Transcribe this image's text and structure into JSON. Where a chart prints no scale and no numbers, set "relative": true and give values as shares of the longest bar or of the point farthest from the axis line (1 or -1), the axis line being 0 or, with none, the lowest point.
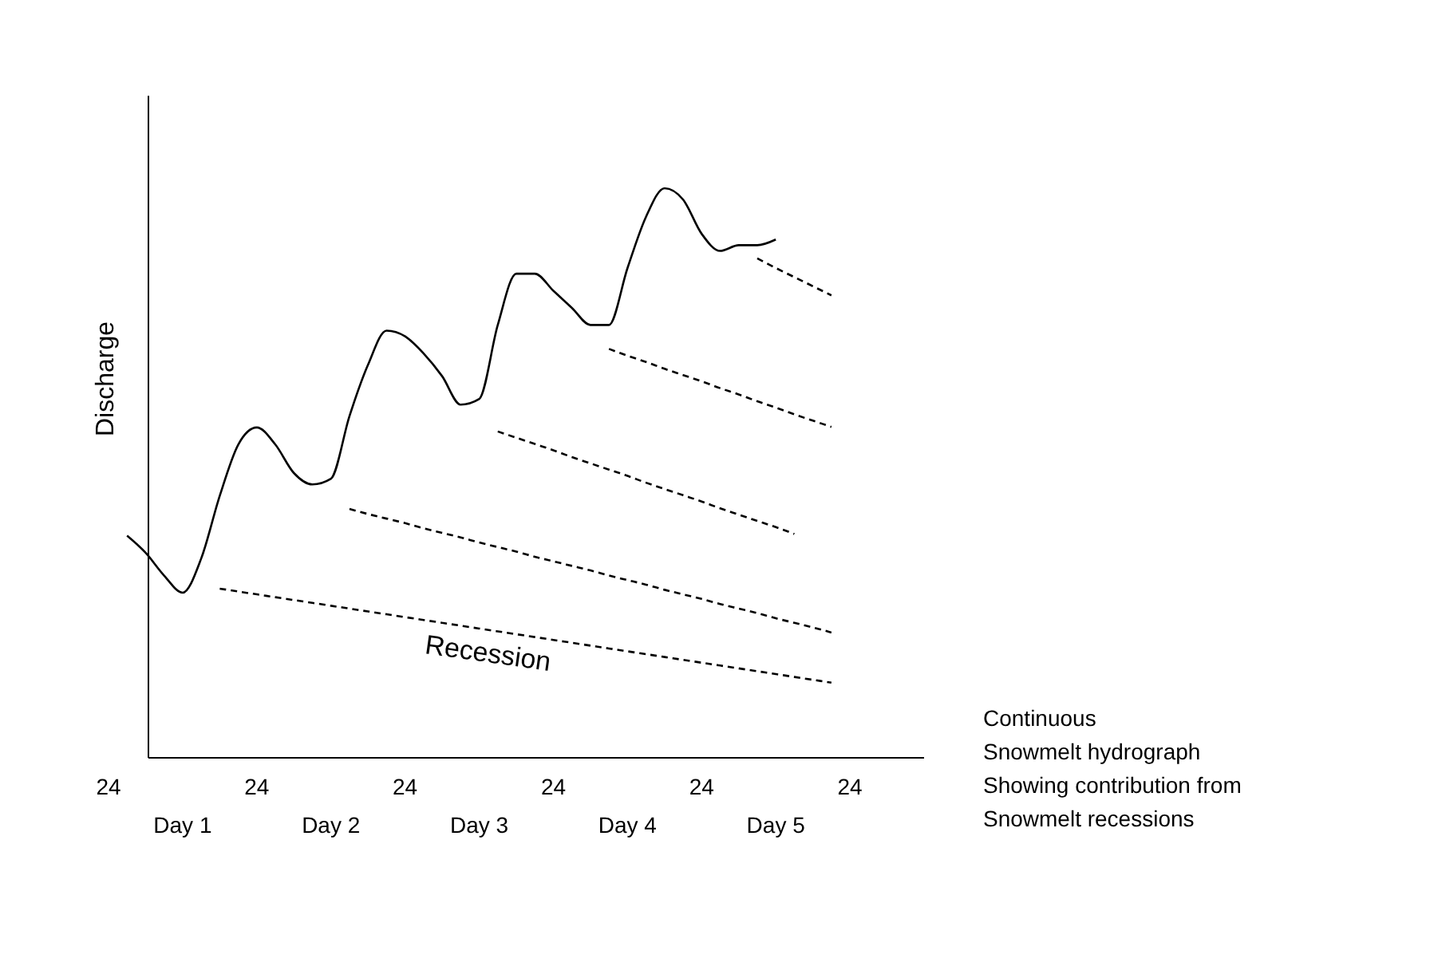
{
  "chart_data": {
    "type": "line",
    "relative": true,
    "ylabel": "Discharge",
    "categories": [
      "24",
      null,
      null,
      null,
      null,
      null,
      null,
      null,
      "24",
      null,
      null,
      null,
      null,
      null,
      null,
      null,
      "24",
      null,
      null,
      null,
      null,
      null,
      null,
      null,
      "24",
      null,
      null,
      null,
      null,
      null,
      null,
      null,
      "24",
      null,
      null,
      null,
      null,
      null,
      null,
      null,
      "24",
      null,
      null,
      null,
      null
    ],
    "grid": false,
    "marker": "none",
    "series": [
      {
        "color": "#000000",
        "line_style": "solid",
        "values": [
          null,
          0.39,
          0.36,
          0.32,
          0.29,
          0.35,
          0.46,
          0.55,
          0.58,
          0.55,
          0.5,
          0.48,
          0.49,
          0.6,
          0.69,
          0.75,
          0.74,
          0.71,
          0.67,
          0.62,
          0.63,
          0.76,
          0.85,
          0.85,
          0.82,
          0.79,
          0.76,
          0.76,
          0.86,
          0.95,
          1.0,
          0.98,
          0.92,
          0.89,
          0.9,
          0.9,
          0.91,
          null,
          null,
          null,
          null,
          null,
          null,
          null,
          null
        ]
      },
      {
        "color": "#000000",
        "line_style": "dashed",
        "values": [
          null,
          null,
          null,
          null,
          null,
          null,
          0.297,
          0.292,
          0.287,
          0.282,
          0.277,
          0.272,
          0.267,
          0.262,
          0.257,
          0.252,
          0.247,
          0.242,
          0.237,
          0.232,
          0.227,
          0.222,
          0.217,
          0.212,
          0.207,
          0.202,
          0.197,
          0.192,
          0.187,
          0.182,
          0.177,
          0.172,
          0.167,
          0.162,
          0.157,
          0.152,
          0.147,
          0.142,
          0.137,
          0.132,
          null,
          null,
          null,
          null,
          null
        ]
      },
      {
        "color": "#000000",
        "line_style": "dashed",
        "values": [
          null,
          null,
          null,
          null,
          null,
          null,
          null,
          null,
          null,
          null,
          null,
          null,
          null,
          0.437,
          0.428,
          0.42,
          0.412,
          0.403,
          0.395,
          0.387,
          0.378,
          0.37,
          0.362,
          0.353,
          0.345,
          0.337,
          0.329,
          0.32,
          0.312,
          0.304,
          0.295,
          0.287,
          0.279,
          0.27,
          0.262,
          0.254,
          0.245,
          0.237,
          0.229,
          0.22,
          null,
          null,
          null,
          null,
          null
        ]
      },
      {
        "color": "#000000",
        "line_style": "dashed",
        "values": [
          null,
          null,
          null,
          null,
          null,
          null,
          null,
          null,
          null,
          null,
          null,
          null,
          null,
          null,
          null,
          null,
          null,
          null,
          null,
          null,
          null,
          0.573,
          0.562,
          0.551,
          0.54,
          0.528,
          0.517,
          0.506,
          0.495,
          0.483,
          0.472,
          0.461,
          0.45,
          0.438,
          0.427,
          0.416,
          0.405,
          0.393,
          null,
          null,
          null,
          null,
          null,
          null,
          null
        ]
      },
      {
        "color": "#000000",
        "line_style": "dashed",
        "values": [
          null,
          null,
          null,
          null,
          null,
          null,
          null,
          null,
          null,
          null,
          null,
          null,
          null,
          null,
          null,
          null,
          null,
          null,
          null,
          null,
          null,
          null,
          null,
          null,
          null,
          null,
          null,
          0.718,
          0.706,
          0.695,
          0.683,
          0.672,
          0.661,
          0.649,
          0.638,
          0.626,
          0.615,
          0.603,
          0.592,
          0.581,
          null,
          null,
          null,
          null,
          null
        ]
      },
      {
        "color": "#000000",
        "line_style": "dashed",
        "values": [
          null,
          null,
          null,
          null,
          null,
          null,
          null,
          null,
          null,
          null,
          null,
          null,
          null,
          null,
          null,
          null,
          null,
          null,
          null,
          null,
          null,
          null,
          null,
          null,
          null,
          null,
          null,
          null,
          null,
          null,
          null,
          null,
          null,
          null,
          null,
          0.877,
          0.86,
          0.844,
          0.828,
          0.812,
          null,
          null,
          null,
          null,
          null
        ]
      }
    ],
    "annotations": [
      "Day 1",
      "Day 2",
      "Day 3",
      "Day 4",
      "Day 5",
      "Recession",
      "Continuous\nSnowmelt hydrograph\nShowing contribution from\nSnowmelt recessions"
    ]
  }
}
